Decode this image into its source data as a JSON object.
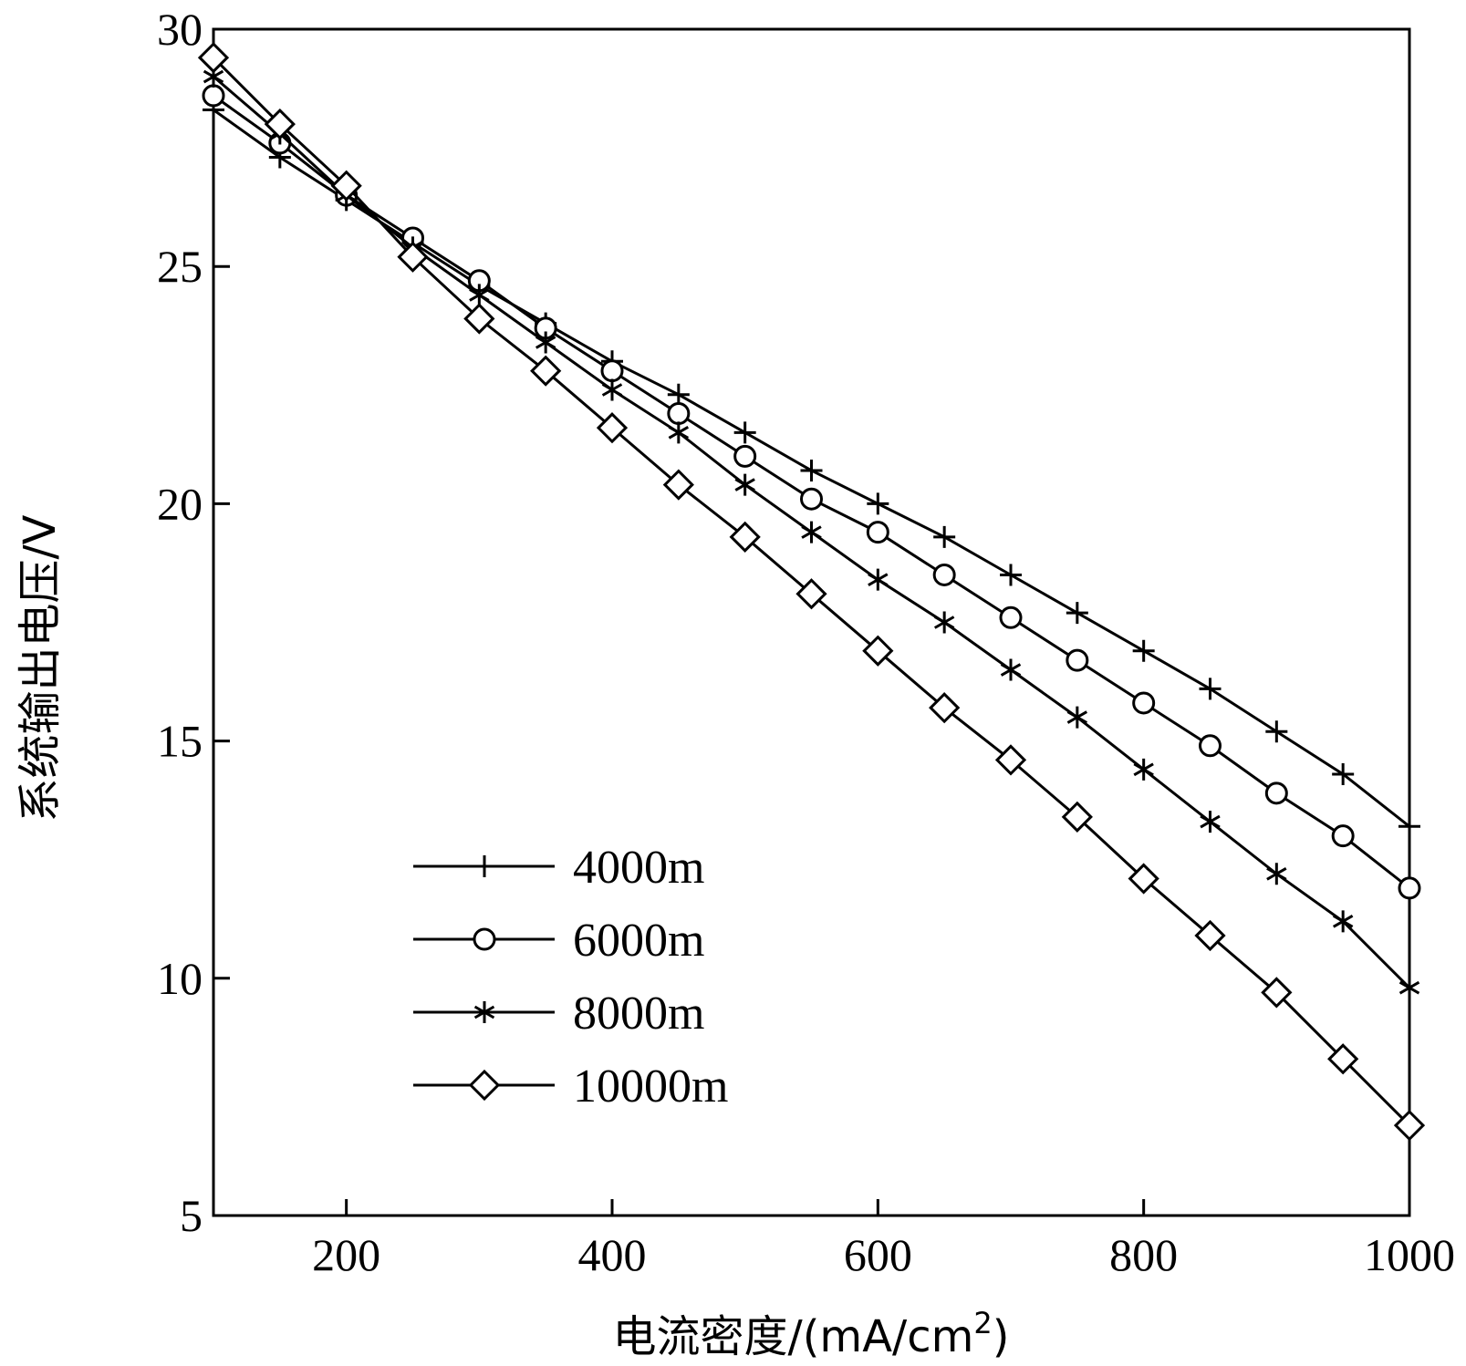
{
  "chart_data": {
    "type": "line",
    "xlabel": "电流密度/(mA/cm",
    "xlabel_sup": "2",
    "xlabel_end": ")",
    "ylabel": "系统输出电压/V",
    "xlim": [
      100,
      1000
    ],
    "ylim": [
      5,
      30
    ],
    "x_ticks": [
      200,
      400,
      600,
      800,
      1000
    ],
    "x_tick_labels": [
      "200",
      "400",
      "600",
      "800",
      "1000"
    ],
    "y_ticks": [
      5,
      10,
      15,
      20,
      25,
      30
    ],
    "y_tick_labels": [
      "5",
      "10",
      "15",
      "20",
      "25",
      "30"
    ],
    "grid": false,
    "legend_position": "lower-left",
    "x": [
      100,
      150,
      200,
      250,
      300,
      350,
      400,
      450,
      500,
      550,
      600,
      650,
      700,
      750,
      800,
      850,
      900,
      950,
      1000
    ],
    "series": [
      {
        "name": "4000m",
        "marker": "plus",
        "values": [
          28.3,
          27.3,
          26.4,
          25.5,
          24.6,
          23.8,
          23.0,
          22.3,
          21.5,
          20.7,
          20.0,
          19.3,
          18.5,
          17.7,
          16.9,
          16.1,
          15.2,
          14.3,
          13.2
        ]
      },
      {
        "name": "6000m",
        "marker": "circle",
        "values": [
          28.6,
          27.6,
          26.5,
          25.6,
          24.7,
          23.7,
          22.8,
          21.9,
          21.0,
          20.1,
          19.4,
          18.5,
          17.6,
          16.7,
          15.8,
          14.9,
          13.9,
          13.0,
          11.9
        ]
      },
      {
        "name": "8000m",
        "marker": "asterisk",
        "values": [
          29.0,
          27.8,
          26.5,
          25.4,
          24.4,
          23.4,
          22.4,
          21.5,
          20.4,
          19.4,
          18.4,
          17.5,
          16.5,
          15.5,
          14.4,
          13.3,
          12.2,
          11.2,
          9.8
        ]
      },
      {
        "name": "10000m",
        "marker": "diamond",
        "values": [
          29.4,
          28.0,
          26.7,
          25.2,
          23.9,
          22.8,
          21.6,
          20.4,
          19.3,
          18.1,
          16.9,
          15.7,
          14.6,
          13.4,
          12.1,
          10.9,
          9.7,
          8.3,
          6.9
        ]
      }
    ]
  }
}
